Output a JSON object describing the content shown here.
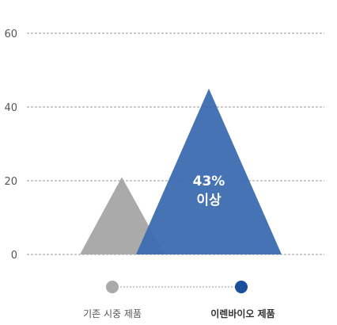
{
  "chart_data": {
    "type": "area",
    "shape": "triangle",
    "ylim": [
      0,
      60
    ],
    "y_ticks": [
      0,
      20,
      40,
      60
    ],
    "grid": true,
    "series": [
      {
        "name": "기존 시중 제품",
        "peak": 21,
        "color": "#aaaaaa"
      },
      {
        "name": "이렌바이오 제품",
        "peak": 45,
        "color": "#3b6cb0",
        "opacity": 0.95
      }
    ],
    "annotation": {
      "line1": "43%",
      "line2": "이상"
    },
    "legend": {
      "placement": "bottom",
      "items": [
        {
          "label": "기존 시중 제품",
          "color": "#aaaaaa"
        },
        {
          "label": "이렌바이오 제품",
          "color": "#1b4f9c"
        }
      ]
    }
  }
}
